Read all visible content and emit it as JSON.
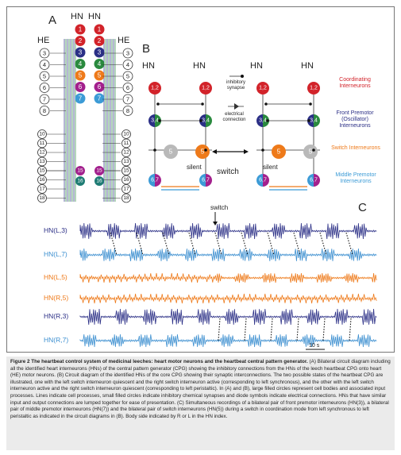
{
  "panel_labels": {
    "a": "A",
    "b": "B",
    "c": "C"
  },
  "panel_a": {
    "hn_headers": [
      "HN",
      "HN"
    ],
    "he_headers": [
      "HE",
      "HE"
    ],
    "interneuron_pairs": [
      {
        "label": "1",
        "color": "#d2232a"
      },
      {
        "label": "2",
        "color": "#d2232a"
      },
      {
        "label": "3",
        "color": "#2b2f86"
      },
      {
        "label": "4",
        "color": "#2a8a3e"
      },
      {
        "label": "5",
        "color": "#ee7a1a"
      },
      {
        "label": "6",
        "color": "#a3208d"
      },
      {
        "label": "7",
        "color": "#3c9bd6"
      }
    ],
    "he_upper": [
      "3",
      "4",
      "5",
      "6",
      "7",
      "8"
    ],
    "he_lower_top": [
      "10",
      "11",
      "12",
      "13",
      "14"
    ],
    "he_lower_bottom": [
      "15",
      "16",
      "17",
      "18"
    ],
    "lower_interneurons": [
      {
        "label": "15",
        "color": "#a3208d"
      },
      {
        "label": "16",
        "color": "#1f7c74"
      }
    ]
  },
  "panel_b": {
    "hn_labels": [
      "HN",
      "HN",
      "HN",
      "HN"
    ],
    "neurons": {
      "top": "1,2",
      "mid": "3,4",
      "switch": "5",
      "bottom": "6,7"
    },
    "silent_label": "silent",
    "switch_label": "switch",
    "legend_inhibitory": "inhibitory synapse",
    "legend_electrical": "electrical connection",
    "categories": [
      {
        "name": "Coordinating Interneurons",
        "color": "#d2232a"
      },
      {
        "name": "Front Premotor (Oscillator) Interneurons",
        "color": "#2b2f86"
      },
      {
        "name": "Switch Interneurons",
        "color": "#ee7a1a"
      },
      {
        "name": "Middle Premotor Interneurons",
        "color": "#3c9bd6"
      }
    ]
  },
  "panel_c": {
    "switch_label": "switch",
    "scale_label": "10 s",
    "traces": [
      {
        "label": "HN(L,3)",
        "color": "#2b2f86",
        "style": "burst"
      },
      {
        "label": "HN(L,7)",
        "color": "#3c8fd0",
        "style": "burst"
      },
      {
        "label": "HN(L,5)",
        "color": "#ee7a1a",
        "style": "spikes"
      },
      {
        "label": "HN(R,5)",
        "color": "#ee7a1a",
        "style": "spikes"
      },
      {
        "label": "HN(R,3)",
        "color": "#2b2f86",
        "style": "burst"
      },
      {
        "label": "HN(R,7)",
        "color": "#3c8fd0",
        "style": "burst"
      }
    ]
  },
  "caption": {
    "title": "Figure 2 The heartbeat control system of medicinal leeches: heart motor neurons and the heartbeat central pattern generator.",
    "body": "(A) Bilateral circuit diagram including all the identified heart interneurons (HNs) of the central pattern generator (CPG) showing the inhibitory connections from the HNs of the leech heartbeat CPG onto heart (HE) motor neurons. (B) Circuit diagram of the identified HNs of the core CPG showing their synaptic interconnections. The two possible states of the heartbeat CPG are illustrated, one with the left switch interneuron quiescent and the right switch interneuron active (corresponding to left synchronous), and the other with the left switch interneuron active and the right switch interneuron quiescent (corresponding to left peristaltic). In (A) and (B), large filled circles represent cell bodies and associated input processes. Lines indicate cell processes, small filled circles indicate inhibitory chemical synapses and diode symbols indicate electrical connections. HNs that have similar input and output connections are lumped together for ease of presentation. (C) Simultaneous recordings of a bilateral pair of front premotor interneurons (HN(3)), a bilateral pair of middle premotor interneurons (HN(7)) and the bilateral pair of switch interneurons (HN(5)) during a switch in coordination mode from left synchronous to left peristaltic as indicated in the circuit diagrams in (B). Body side indicated by R or L in the HN index."
  }
}
